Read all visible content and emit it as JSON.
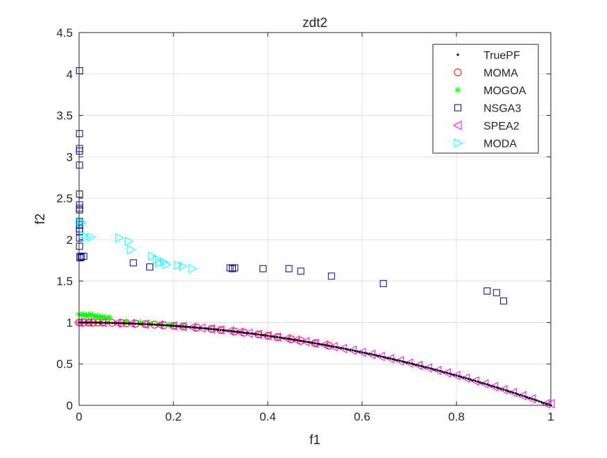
{
  "chart_data": {
    "type": "scatter",
    "title": "zdt2",
    "xlabel": "f1",
    "ylabel": "f2",
    "xlim": [
      0,
      1
    ],
    "ylim": [
      0,
      4.5
    ],
    "grid": true,
    "legend_position": "top-right",
    "x_ticks": [
      0,
      0.2,
      0.4,
      0.6,
      0.8,
      1
    ],
    "x_tick_labels": [
      "0",
      "0.2",
      "0.4",
      "0.6",
      "0.8",
      "1"
    ],
    "y_ticks": [
      0,
      0.5,
      1,
      1.5,
      2,
      2.5,
      3,
      3.5,
      4,
      4.5
    ],
    "y_tick_labels": [
      "0",
      "0.5",
      "1",
      "1.5",
      "2",
      "2.5",
      "3",
      "3.5",
      "4",
      "4.5"
    ],
    "series": [
      {
        "name": "TruePF",
        "marker": "dot",
        "color": "#000000",
        "curve": "f2 = 1 - f1^2",
        "x_range": [
          0,
          1
        ],
        "n_points": 200
      },
      {
        "name": "MOMA",
        "marker": "circle",
        "color": "#ff0000",
        "x": [
          0.0,
          0.01,
          0.02,
          0.03,
          0.04,
          0.05,
          0.07,
          0.09,
          0.1,
          0.12,
          0.14,
          0.16,
          0.18,
          0.2,
          0.22,
          0.25,
          0.28,
          0.3,
          0.33,
          0.35,
          0.38,
          0.4,
          0.42,
          0.45,
          0.47,
          0.5,
          0.53
        ],
        "y": [
          1.0,
          1.0,
          1.0,
          1.0,
          1.0,
          1.0,
          0.995,
          0.992,
          0.99,
          0.986,
          0.98,
          0.974,
          0.968,
          0.96,
          0.952,
          0.938,
          0.922,
          0.91,
          0.891,
          0.878,
          0.856,
          0.84,
          0.824,
          0.797,
          0.779,
          0.75,
          0.719
        ]
      },
      {
        "name": "MOGOA",
        "marker": "asterisk",
        "color": "#00ff00",
        "x": [
          0.0,
          0.005,
          0.01,
          0.015,
          0.02,
          0.025,
          0.03,
          0.035,
          0.04,
          0.045,
          0.05,
          0.055,
          0.06,
          0.065,
          0.1,
          0.13,
          0.15,
          0.17,
          0.19,
          0.2,
          0.22
        ],
        "y": [
          1.1,
          1.09,
          1.1,
          1.08,
          1.09,
          1.1,
          1.08,
          1.07,
          1.08,
          1.06,
          1.07,
          1.06,
          1.05,
          1.06,
          1.01,
          1.0,
          0.99,
          0.98,
          0.97,
          0.97,
          0.96
        ]
      },
      {
        "name": "NSGA3",
        "marker": "square",
        "color": "#000080",
        "x": [
          0.001,
          0.001,
          0.001,
          0.001,
          0.001,
          0.001,
          0.001,
          0.001,
          0.001,
          0.001,
          0.001,
          0.001,
          0.001,
          0.001,
          0.001,
          0.002,
          0.002,
          0.005,
          0.01,
          0.115,
          0.15,
          0.32,
          0.325,
          0.33,
          0.39,
          0.445,
          0.47,
          0.535,
          0.645,
          0.865,
          0.885,
          0.9
        ],
        "y": [
          4.04,
          3.28,
          3.1,
          3.07,
          2.9,
          2.55,
          2.42,
          2.38,
          2.36,
          2.22,
          2.18,
          2.13,
          2.1,
          2.02,
          1.92,
          1.8,
          1.78,
          1.79,
          1.8,
          1.72,
          1.67,
          1.66,
          1.65,
          1.66,
          1.65,
          1.65,
          1.62,
          1.56,
          1.47,
          1.38,
          1.36,
          1.26
        ]
      },
      {
        "name": "SPEA2",
        "marker": "triangle-left",
        "color": "#ff00ff",
        "x": [
          0.0,
          0.02,
          0.05,
          0.08,
          0.11,
          0.14,
          0.17,
          0.2,
          0.22,
          0.24,
          0.26,
          0.28,
          0.3,
          0.32,
          0.34,
          0.36,
          0.38,
          0.4,
          0.42,
          0.44,
          0.46,
          0.48,
          0.5,
          0.52,
          0.54,
          0.56,
          0.58,
          0.6,
          0.62,
          0.64,
          0.66,
          0.68,
          0.7,
          0.72,
          0.74,
          0.76,
          0.78,
          0.8,
          0.82,
          0.84,
          0.86,
          0.88,
          0.9,
          0.92,
          0.94,
          0.96,
          0.99,
          1.0
        ],
        "y": [
          1.0,
          1.0,
          0.998,
          0.994,
          0.988,
          0.98,
          0.971,
          0.96,
          0.952,
          0.942,
          0.932,
          0.922,
          0.91,
          0.898,
          0.884,
          0.87,
          0.856,
          0.84,
          0.824,
          0.806,
          0.788,
          0.77,
          0.75,
          0.73,
          0.708,
          0.686,
          0.664,
          0.64,
          0.616,
          0.59,
          0.564,
          0.538,
          0.51,
          0.482,
          0.452,
          0.422,
          0.392,
          0.36,
          0.328,
          0.294,
          0.26,
          0.226,
          0.19,
          0.154,
          0.116,
          0.078,
          0.02,
          0.02
        ]
      },
      {
        "name": "MODA",
        "marker": "triangle-right",
        "color": "#00ffff",
        "x": [
          0.003,
          0.005,
          0.01,
          0.015,
          0.025,
          0.085,
          0.105,
          0.11,
          0.155,
          0.165,
          0.17,
          0.18,
          0.185,
          0.21,
          0.22,
          0.24
        ],
        "y": [
          2.22,
          2.2,
          2.05,
          2.03,
          2.03,
          2.02,
          1.98,
          1.88,
          1.8,
          1.76,
          1.72,
          1.73,
          1.7,
          1.69,
          1.68,
          1.65
        ]
      }
    ]
  }
}
